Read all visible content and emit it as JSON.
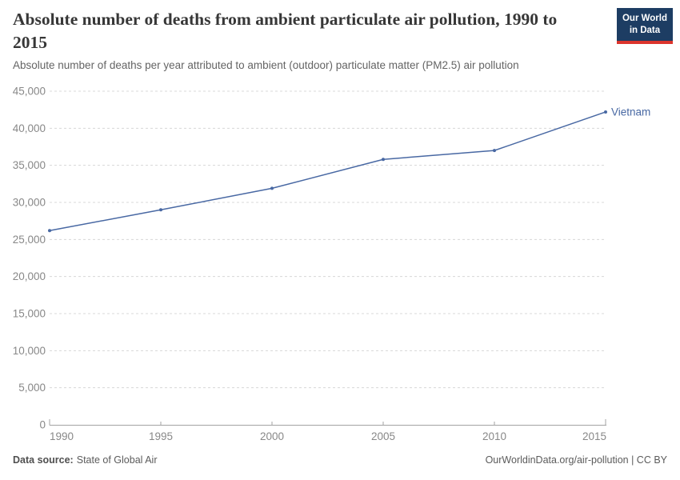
{
  "logo": {
    "lines": [
      "Our World",
      "in Data"
    ],
    "bg_color": "#1d3d63",
    "bar_color": "#dc352d"
  },
  "chart_data": {
    "type": "line",
    "title": "Absolute number of deaths from ambient particulate air pollution, 1990 to 2015",
    "subtitle": "Absolute number of deaths per year attributed to ambient (outdoor) particulate matter (PM2.5) air pollution",
    "x": [
      1990,
      1995,
      2000,
      2005,
      2010,
      2015
    ],
    "xtick_labels": [
      "1990",
      "1995",
      "2000",
      "2005",
      "2010",
      "2015"
    ],
    "series": [
      {
        "name": "Vietnam",
        "color": "#4868a3",
        "values": [
          26200,
          29000,
          31900,
          35800,
          37000,
          42200
        ]
      }
    ],
    "xlabel": "",
    "ylabel": "",
    "xlim": [
      1990,
      2015
    ],
    "ylim": [
      0,
      45000
    ],
    "yticks": [
      0,
      5000,
      10000,
      15000,
      20000,
      25000,
      30000,
      35000,
      40000,
      45000
    ],
    "ytick_labels": [
      "0",
      "5,000",
      "10,000",
      "15,000",
      "20,000",
      "25,000",
      "30,000",
      "35,000",
      "40,000",
      "45,000"
    ],
    "grid": "horizontal-dashed",
    "legend_position": "line-end-label"
  },
  "footer": {
    "source_label": "Data source:",
    "source_name": "State of Global Air",
    "license": "OurWorldinData.org/air-pollution | CC BY"
  }
}
